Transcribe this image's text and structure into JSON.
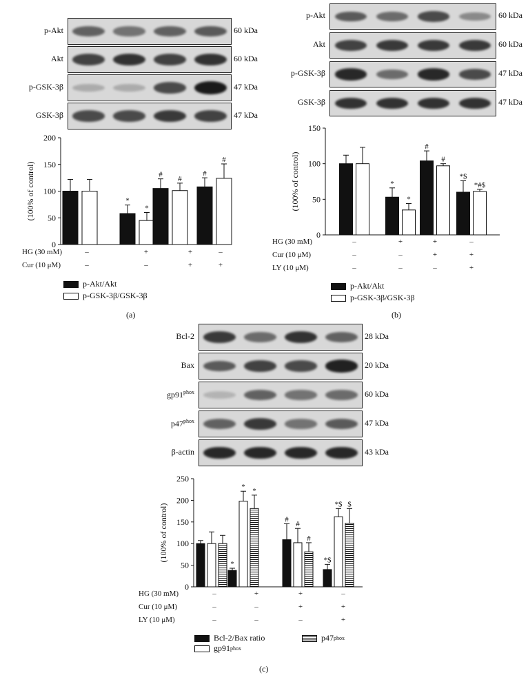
{
  "panel_a": {
    "letter": "(a)",
    "blots": [
      {
        "label": "p-Akt",
        "kda": "60 kDa",
        "intensity": [
          0.55,
          0.45,
          0.55,
          0.6
        ]
      },
      {
        "label": "Akt",
        "kda": "60 kDa",
        "intensity": [
          0.75,
          0.85,
          0.75,
          0.85
        ]
      },
      {
        "label": "p-GSK-3β",
        "kda": "47 kDa",
        "intensity": [
          0.1,
          0.1,
          0.7,
          1.0
        ]
      },
      {
        "label": "GSK-3β",
        "kda": "47 kDa",
        "intensity": [
          0.7,
          0.7,
          0.8,
          0.75
        ]
      }
    ],
    "treatments": [
      {
        "label": "HG (30 mM)",
        "signs": [
          "–",
          "+",
          "+",
          "–"
        ]
      },
      {
        "label": "Cur (10 μM)",
        "signs": [
          "–",
          "–",
          "+",
          "+"
        ]
      }
    ],
    "legend": [
      "p-Akt/Akt",
      "p-GSK-3β/GSK-3β"
    ]
  },
  "panel_b": {
    "letter": "(b)",
    "blots": [
      {
        "label": "p-Akt",
        "kda": "60 kDa",
        "intensity": [
          0.6,
          0.5,
          0.7,
          0.3
        ]
      },
      {
        "label": "Akt",
        "kda": "60 kDa",
        "intensity": [
          0.75,
          0.8,
          0.8,
          0.8
        ]
      },
      {
        "label": "p-GSK-3β",
        "kda": "47 kDa",
        "intensity": [
          0.9,
          0.5,
          0.9,
          0.7
        ]
      },
      {
        "label": "GSK-3β",
        "kda": "47 kDa",
        "intensity": [
          0.85,
          0.85,
          0.85,
          0.85
        ]
      }
    ],
    "treatments": [
      {
        "label": "HG (30 mM)",
        "signs": [
          "–",
          "+",
          "+",
          "–"
        ]
      },
      {
        "label": "Cur (10 μM)",
        "signs": [
          "–",
          "–",
          "+",
          "+"
        ]
      },
      {
        "label": "LY (10 μM)",
        "signs": [
          "–",
          "–",
          "–",
          "+"
        ]
      }
    ],
    "legend": [
      "p-Akt/Akt",
      "p-GSK-3β/GSK-3β"
    ]
  },
  "panel_c": {
    "letter": "(c)",
    "blots": [
      {
        "label": "Bcl-2",
        "sup": "",
        "kda": "28 kDa",
        "intensity": [
          0.8,
          0.5,
          0.85,
          0.55
        ]
      },
      {
        "label": "Bax",
        "sup": "",
        "kda": "20 kDa",
        "intensity": [
          0.6,
          0.75,
          0.7,
          0.95
        ]
      },
      {
        "label": "gp91",
        "sup": "phox",
        "kda": "60 kDa",
        "intensity": [
          0.05,
          0.55,
          0.45,
          0.5
        ]
      },
      {
        "label": "p47",
        "sup": "phox",
        "kda": "47 kDa",
        "intensity": [
          0.55,
          0.8,
          0.45,
          0.6
        ]
      },
      {
        "label": "β-actin",
        "sup": "",
        "kda": "43 kDa",
        "intensity": [
          0.9,
          0.9,
          0.9,
          0.9
        ]
      }
    ],
    "treatments": [
      {
        "label": "HG (30 mM)",
        "signs": [
          "–",
          "+",
          "+",
          "–"
        ]
      },
      {
        "label": "Cur (10 μM)",
        "signs": [
          "–",
          "–",
          "+",
          "+"
        ]
      },
      {
        "label": "LY (10 μM)",
        "signs": [
          "–",
          "–",
          "–",
          "+"
        ]
      }
    ],
    "legend": [
      "Bcl-2/Bax ratio",
      "gp91",
      "p47"
    ],
    "legend_sup": "phox"
  },
  "chart_data": [
    {
      "type": "bar",
      "panel": "a",
      "categories": [
        "1",
        "2",
        "3",
        "4"
      ],
      "series": [
        {
          "name": "p-Akt/Akt",
          "fill": "#111111",
          "values": [
            100,
            58,
            105,
            108
          ],
          "errors": [
            22,
            16,
            18,
            17
          ],
          "annotations": [
            "",
            "*",
            "#",
            "#"
          ]
        },
        {
          "name": "p-GSK-3β/GSK-3β",
          "fill": "#ffffff",
          "values": [
            100,
            45,
            101,
            124
          ],
          "errors": [
            22,
            15,
            14,
            27
          ],
          "annotations": [
            "",
            "*",
            "#",
            "#"
          ]
        }
      ],
      "ylabel": "(100% of control)",
      "ylim": [
        0,
        200
      ],
      "yticks": [
        0,
        50,
        100,
        150,
        200
      ]
    },
    {
      "type": "bar",
      "panel": "b",
      "categories": [
        "1",
        "2",
        "3",
        "4"
      ],
      "series": [
        {
          "name": "p-Akt/Akt",
          "fill": "#111111",
          "values": [
            100,
            53,
            104,
            60
          ],
          "errors": [
            12,
            13,
            14,
            16
          ],
          "annotations": [
            "",
            "*",
            "#",
            "*$"
          ]
        },
        {
          "name": "p-GSK-3β/GSK-3β",
          "fill": "#ffffff",
          "values": [
            100,
            35,
            97,
            61
          ],
          "errors": [
            23,
            9,
            3,
            3
          ],
          "annotations": [
            "",
            "*",
            "#",
            "*#$"
          ]
        }
      ],
      "ylabel": "(100% of control)",
      "ylim": [
        0,
        150
      ],
      "yticks": [
        0,
        50,
        100,
        150
      ]
    },
    {
      "type": "bar",
      "panel": "c",
      "categories": [
        "1",
        "2",
        "3",
        "4"
      ],
      "series": [
        {
          "name": "Bcl-2/Bax ratio",
          "fill": "#111111",
          "values": [
            100,
            38,
            109,
            40
          ],
          "errors": [
            7,
            5,
            37,
            12
          ],
          "annotations": [
            "",
            "*",
            "#",
            "*$"
          ]
        },
        {
          "name": "gp91phox",
          "fill": "#ffffff",
          "values": [
            100,
            198,
            102,
            162
          ],
          "errors": [
            27,
            23,
            33,
            19
          ],
          "annotations": [
            "",
            "*",
            "#",
            "*$"
          ]
        },
        {
          "name": "p47phox",
          "fill": "hatch",
          "values": [
            100,
            181,
            81,
            147
          ],
          "errors": [
            19,
            31,
            21,
            34
          ],
          "annotations": [
            "",
            "*",
            "#",
            "$"
          ]
        }
      ],
      "ylabel": "(100% of control)",
      "ylim": [
        0,
        250
      ],
      "yticks": [
        0,
        50,
        100,
        150,
        200,
        250
      ]
    }
  ]
}
